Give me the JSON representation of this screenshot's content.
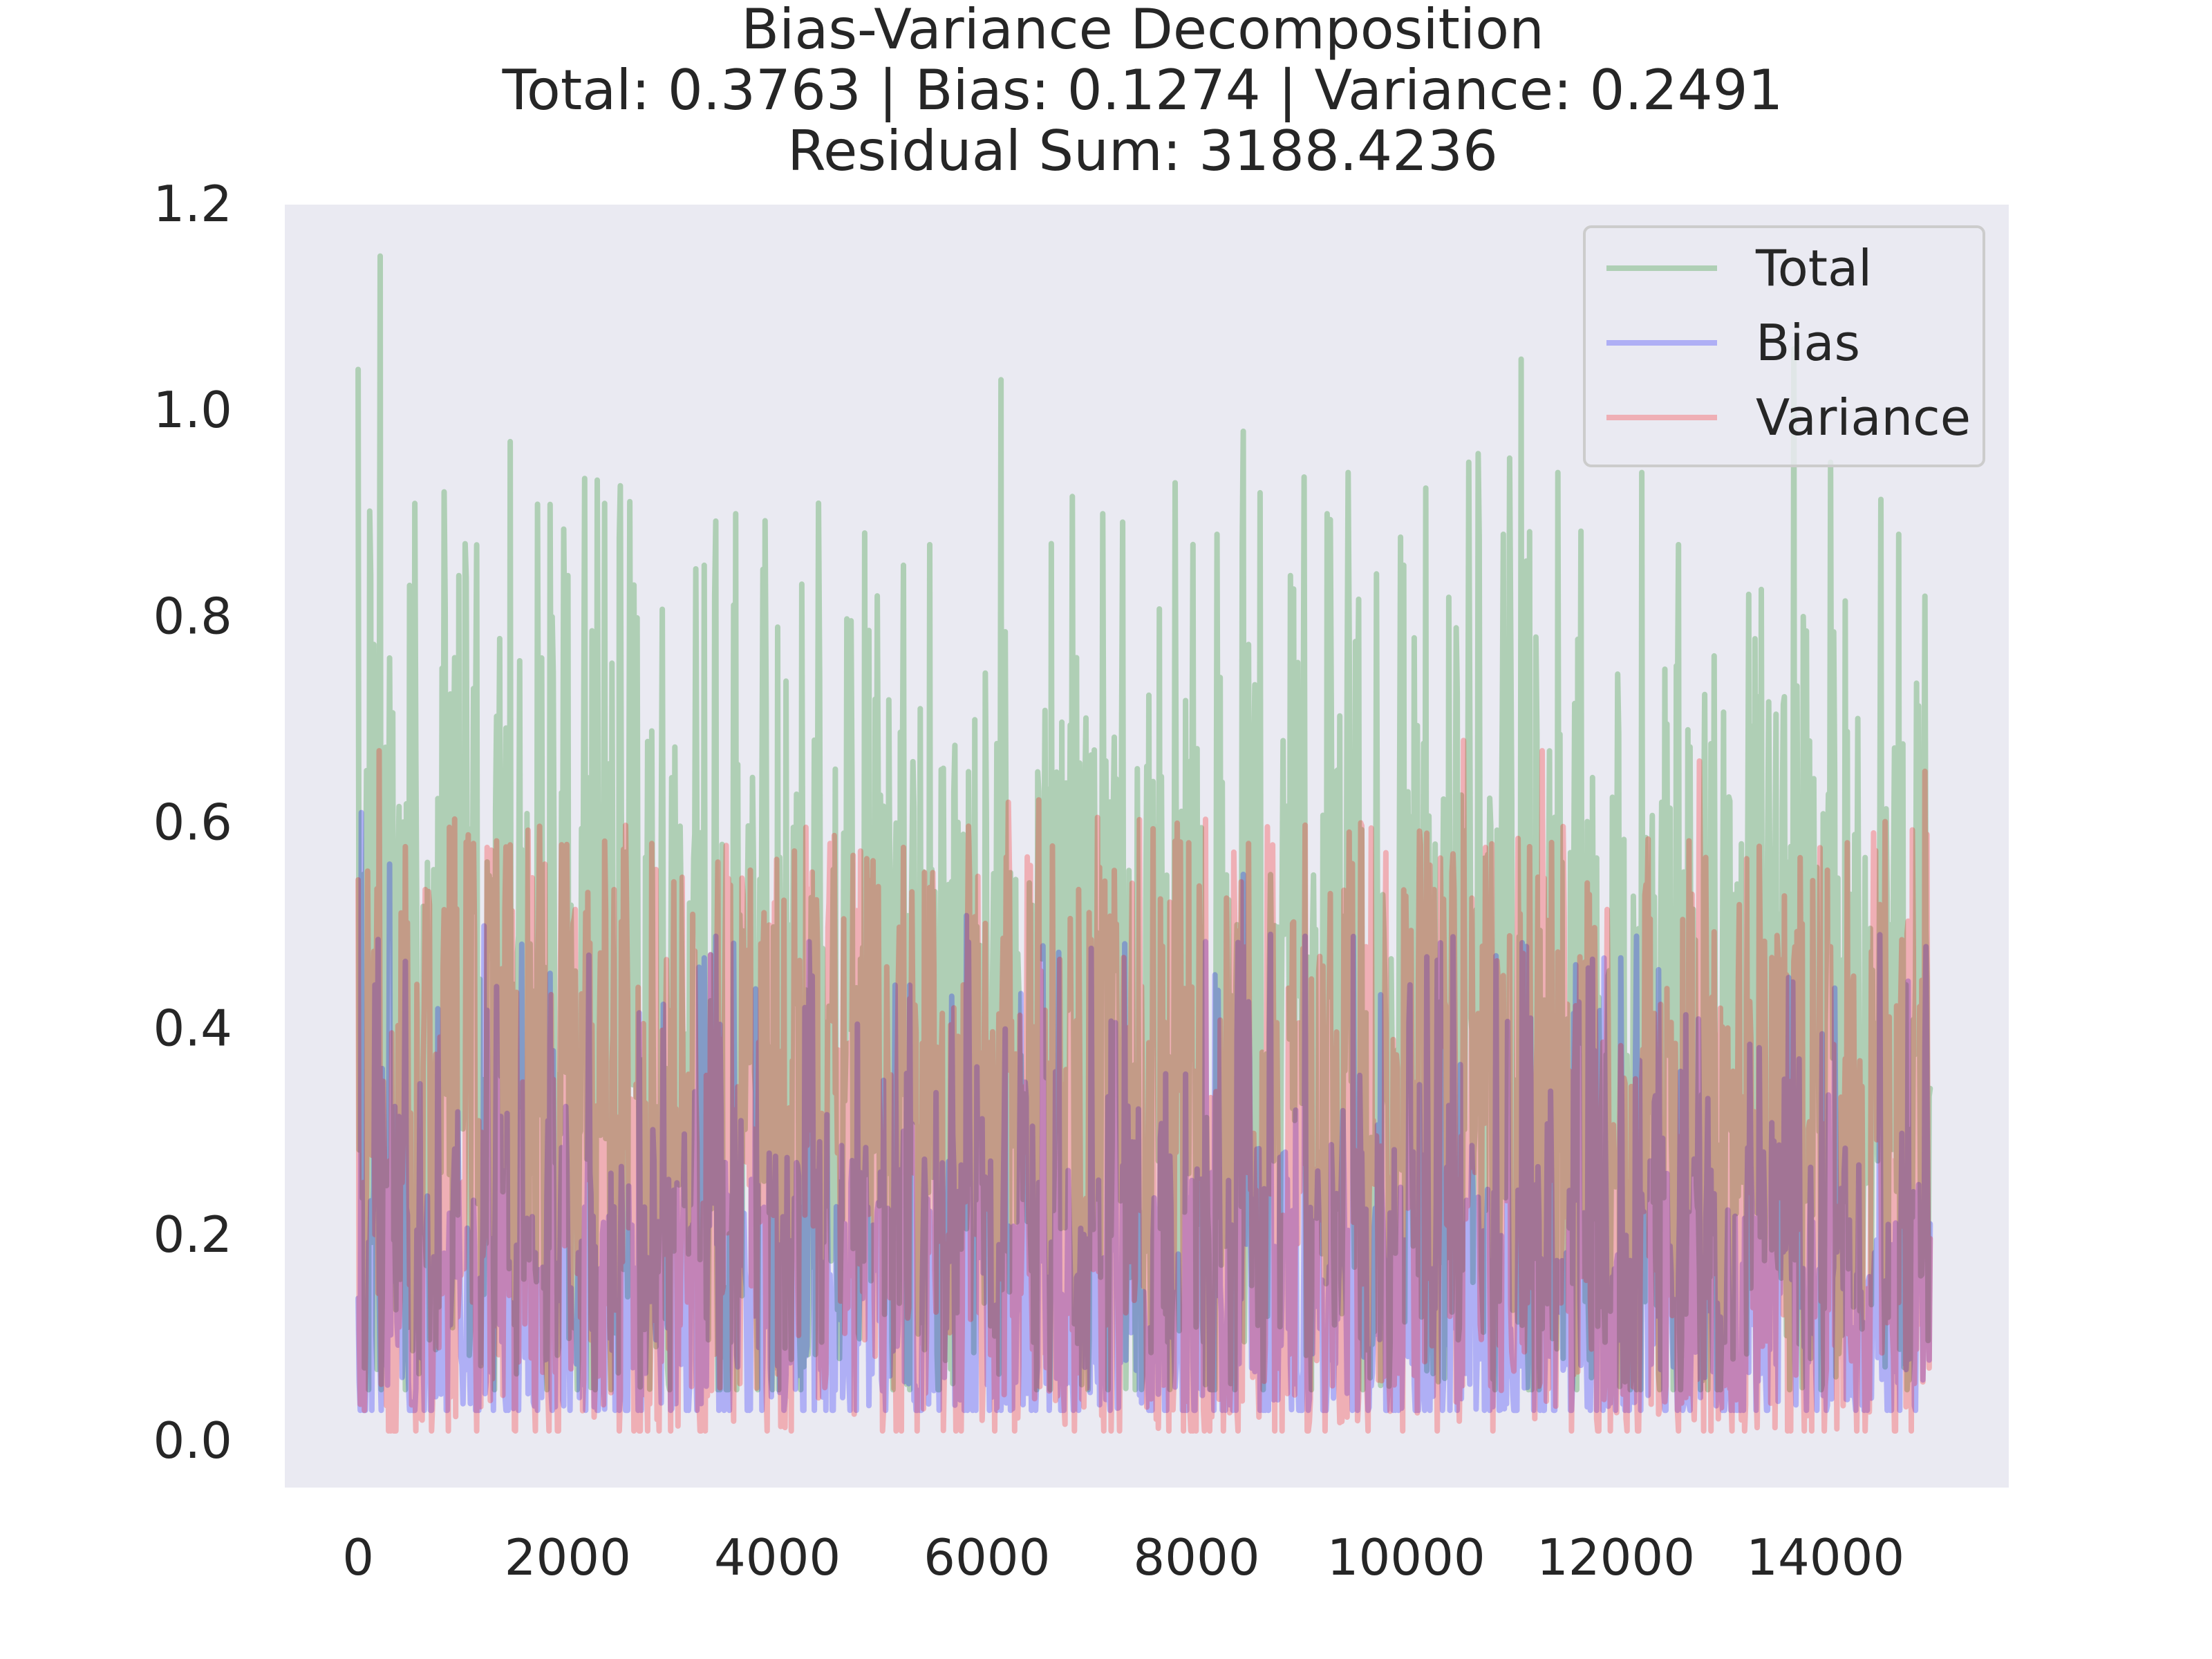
{
  "chart_data": {
    "type": "line",
    "title_lines": [
      "Bias-Variance Decomposition",
      "Total: 0.3763 | Bias: 0.1274 | Variance: 0.2491",
      "Residual Sum: 3188.4236"
    ],
    "xlabel": "",
    "ylabel": "",
    "xlim": [
      -700,
      15750
    ],
    "ylim": [
      -0.045,
      1.2
    ],
    "x_ticks": [
      0,
      2000,
      4000,
      6000,
      8000,
      10000,
      12000,
      14000
    ],
    "x_tick_labels": [
      "0",
      "2000",
      "4000",
      "6000",
      "8000",
      "10000",
      "12000",
      "14000"
    ],
    "y_ticks": [
      0.0,
      0.2,
      0.4,
      0.6,
      0.8,
      1.0,
      1.2
    ],
    "y_tick_labels": [
      "0.0",
      "0.2",
      "0.4",
      "0.6",
      "0.8",
      "1.0",
      "1.2"
    ],
    "grid": false,
    "background": "#eaeaf2",
    "legend_position": "upper-right",
    "x_range": [
      0,
      15000
    ],
    "series": [
      {
        "name": "Total",
        "color": "#008000",
        "opacity": 0.25,
        "mean": 0.3763,
        "typical_min": 0.12,
        "typical_max": 0.65,
        "approx_min": 0.05,
        "approx_max": 1.15,
        "peaks": [
          [
            5,
            1.04
          ],
          [
            215,
            1.15
          ],
          [
            50,
            0.55
          ],
          [
            120,
            0.84
          ],
          [
            300,
            0.76
          ],
          [
            540,
            0.91
          ],
          [
            800,
            0.75
          ],
          [
            960,
            0.84
          ],
          [
            1450,
            0.97
          ],
          [
            1750,
            0.76
          ],
          [
            1850,
            0.8
          ],
          [
            2000,
            0.84
          ],
          [
            2350,
            0.91
          ],
          [
            3300,
            0.85
          ],
          [
            3400,
            0.82
          ],
          [
            3600,
            0.9
          ],
          [
            4000,
            0.79
          ],
          [
            5200,
            0.85
          ],
          [
            5450,
            0.87
          ],
          [
            6130,
            1.03
          ],
          [
            7100,
            0.9
          ],
          [
            7800,
            0.93
          ],
          [
            8200,
            0.88
          ],
          [
            8450,
            0.98
          ],
          [
            8900,
            0.84
          ],
          [
            9250,
            0.9
          ],
          [
            9450,
            0.94
          ],
          [
            9980,
            0.85
          ],
          [
            10600,
            0.95
          ],
          [
            11100,
            1.05
          ],
          [
            11450,
            0.94
          ],
          [
            12250,
            0.94
          ],
          [
            12600,
            0.87
          ],
          [
            13700,
            1.06
          ],
          [
            14050,
            0.95
          ],
          [
            14700,
            0.88
          ],
          [
            14950,
            0.82
          ]
        ]
      },
      {
        "name": "Bias",
        "color": "#0000ff",
        "opacity": 0.25,
        "mean": 0.1274,
        "typical_min": 0.06,
        "typical_max": 0.3,
        "approx_min": 0.03,
        "approx_max": 0.61,
        "peaks": [
          [
            30,
            0.61
          ],
          [
            300,
            0.56
          ],
          [
            1200,
            0.5
          ],
          [
            3250,
            0.46
          ],
          [
            5800,
            0.51
          ],
          [
            8450,
            0.55
          ],
          [
            10200,
            0.47
          ],
          [
            11150,
            0.48
          ],
          [
            12200,
            0.49
          ],
          [
            13650,
            0.45
          ],
          [
            14950,
            0.38
          ]
        ]
      },
      {
        "name": "Variance",
        "color": "#ff0000",
        "opacity": 0.25,
        "mean": 0.2491,
        "typical_min": 0.06,
        "typical_max": 0.5,
        "approx_min": 0.01,
        "approx_max": 0.67,
        "peaks": [
          [
            200,
            0.67
          ],
          [
            1100,
            0.58
          ],
          [
            2800,
            0.58
          ],
          [
            4500,
            0.58
          ],
          [
            6200,
            0.62
          ],
          [
            8500,
            0.58
          ],
          [
            10200,
            0.59
          ],
          [
            10550,
            0.68
          ],
          [
            11300,
            0.67
          ],
          [
            12800,
            0.66
          ],
          [
            14950,
            0.65
          ]
        ]
      }
    ]
  }
}
